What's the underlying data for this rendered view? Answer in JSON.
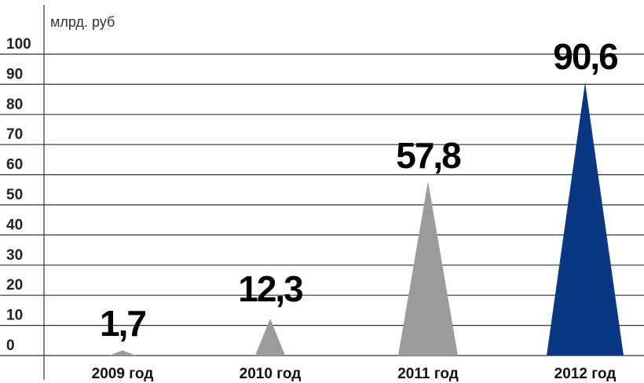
{
  "chart_data": {
    "type": "bar",
    "shape": "triangle",
    "unit_label": "млрд. руб",
    "categories": [
      "2009 год",
      "2010 год",
      "2011 год",
      "2012 год"
    ],
    "values": [
      1.7,
      12.3,
      57.8,
      90.6
    ],
    "value_labels": [
      "1,7",
      "12,3",
      "57,8",
      "90,6"
    ],
    "bar_colors": [
      "#9b9b9e",
      "#9b9b9e",
      "#9b9b9e",
      "#0a3782"
    ],
    "ylim": [
      0,
      100
    ],
    "yticks": [
      "0",
      "10",
      "20",
      "30",
      "40",
      "50",
      "60",
      "70",
      "80",
      "90",
      "100"
    ],
    "grid": true,
    "title": "",
    "xlabel": "",
    "ylabel": ""
  }
}
